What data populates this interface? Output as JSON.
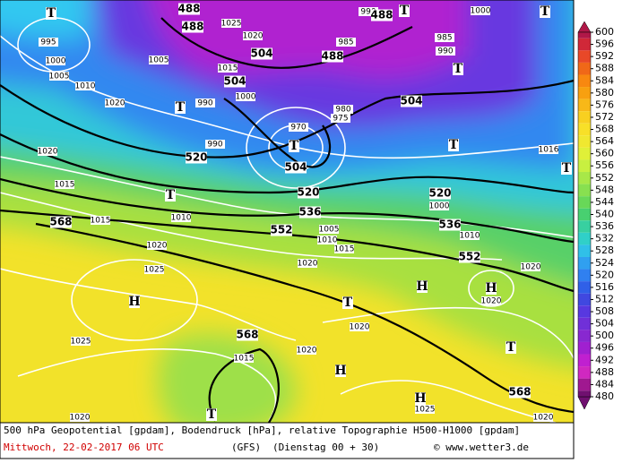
{
  "map": {
    "pressure_centers": [
      "T",
      "T",
      "T",
      "T",
      "T",
      "T",
      "T",
      "T",
      "T",
      "T",
      "T",
      "T",
      "H",
      "H",
      "H",
      "H",
      "H"
    ],
    "geopotential_labels": [
      488,
      488,
      488,
      488,
      504,
      504,
      504,
      504,
      520,
      520,
      520,
      536,
      536,
      552,
      552,
      568,
      568,
      568
    ],
    "isobar_labels": [
      995,
      1000,
      1005,
      1010,
      1005,
      1020,
      1020,
      1015,
      1015,
      1010,
      1020,
      1025,
      1020,
      1015,
      1025,
      1015,
      1020,
      1020,
      1020,
      1020,
      1020,
      1016,
      1010,
      1020,
      1025,
      990,
      990,
      985,
      1000,
      1025,
      1020,
      1015,
      1000,
      980,
      975,
      970,
      1000,
      1005,
      1010,
      990,
      985,
      990
    ]
  },
  "colorbar": {
    "ticks": [
      600,
      596,
      592,
      588,
      584,
      580,
      576,
      572,
      568,
      564,
      560,
      556,
      552,
      548,
      544,
      540,
      536,
      532,
      528,
      524,
      520,
      516,
      512,
      508,
      504,
      500,
      496,
      492,
      488,
      484,
      480
    ],
    "colors": [
      "#b01848",
      "#d02838",
      "#e84828",
      "#f06818",
      "#f88810",
      "#f8a010",
      "#f8b818",
      "#f8d020",
      "#f8e028",
      "#f0e830",
      "#e0f038",
      "#c8f040",
      "#a8e848",
      "#88e050",
      "#68d858",
      "#48d070",
      "#38d0a0",
      "#30d0c8",
      "#30c0e8",
      "#30a0f0",
      "#3080f0",
      "#3060e8",
      "#4048e0",
      "#5838e0",
      "#7030d8",
      "#8828d0",
      "#a020d0",
      "#c020d0",
      "#d028c0",
      "#a01890",
      "#701070"
    ]
  },
  "footer": {
    "line1": "500 hPa Geopotential [gpdam], Bodendruck [hPa], relative Topographie H500-H1000 [gpdam]",
    "date": "Mittwoch, 22-02-2017  06 UTC",
    "model": "(GFS)",
    "run": "(Dienstag 00 + 30)",
    "credit": "© www.wetter3.de"
  }
}
